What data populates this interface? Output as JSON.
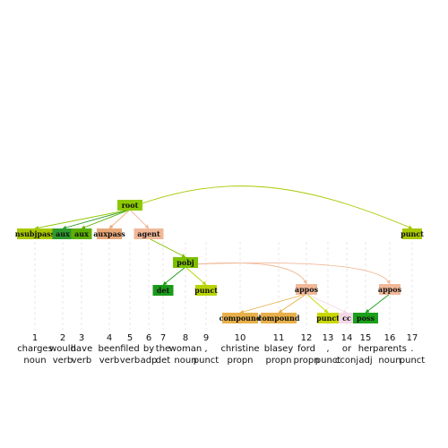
{
  "tokens": [
    {
      "index": "1",
      "word": "charges",
      "pos": "noun"
    },
    {
      "index": "2",
      "word": "would",
      "pos": "verb"
    },
    {
      "index": "3",
      "word": "have",
      "pos": "verb"
    },
    {
      "index": "4",
      "word": "been",
      "pos": "verb"
    },
    {
      "index": "5",
      "word": "filed",
      "pos": "verb"
    },
    {
      "index": "6",
      "word": "by",
      "pos": "adp"
    },
    {
      "index": "7",
      "word": "the",
      "pos": "det"
    },
    {
      "index": "8",
      "word": "woman",
      "pos": "noun"
    },
    {
      "index": "9",
      "word": ",",
      "pos": "punct"
    },
    {
      "index": "10",
      "word": "christine",
      "pos": "propn"
    },
    {
      "index": "11",
      "word": "blasey",
      "pos": "propn"
    },
    {
      "index": "12",
      "word": "ford",
      "pos": "propn"
    },
    {
      "index": "13",
      "word": ",",
      "pos": "punct"
    },
    {
      "index": "14",
      "word": "or",
      "pos": "cconj"
    },
    {
      "index": "15",
      "word": "her",
      "pos": "adj"
    },
    {
      "index": "16",
      "word": "parents",
      "pos": "noun"
    },
    {
      "index": "17",
      "word": ".",
      "pos": "punct"
    }
  ],
  "nodes": [
    {
      "id": "root",
      "label": "root",
      "color": "#8cc800"
    },
    {
      "id": "nsubjpass",
      "label": "nsubjpass",
      "color": "#a8c800"
    },
    {
      "id": "aux1",
      "label": "aux",
      "color": "#2e9a2e"
    },
    {
      "id": "aux2",
      "label": "aux",
      "color": "#5cb000"
    },
    {
      "id": "auxpass",
      "label": "auxpass",
      "color": "#e8a878"
    },
    {
      "id": "agent",
      "label": "agent",
      "color": "#f0b898"
    },
    {
      "id": "punct17",
      "label": "punct",
      "color": "#a8c800"
    },
    {
      "id": "pobj",
      "label": "pobj",
      "color": "#7cc000"
    },
    {
      "id": "det",
      "label": "det",
      "color": "#1a9a1a"
    },
    {
      "id": "punct9",
      "label": "punct",
      "color": "#b8d400"
    },
    {
      "id": "appos12",
      "label": "appos",
      "color": "#f0b898"
    },
    {
      "id": "appos16",
      "label": "appos",
      "color": "#f0b898"
    },
    {
      "id": "compound10",
      "label": "compound",
      "color": "#e8b048"
    },
    {
      "id": "compound11",
      "label": "compound",
      "color": "#e8b048"
    },
    {
      "id": "punct13",
      "label": "punct",
      "color": "#c8d800"
    },
    {
      "id": "cc",
      "label": "cc",
      "color": "#f4d8e8"
    },
    {
      "id": "poss",
      "label": "poss",
      "color": "#1aa01a"
    }
  ],
  "edges": [
    {
      "from": "root",
      "to": "nsubjpass",
      "color": "#8cc800"
    },
    {
      "from": "root",
      "to": "aux1",
      "color": "#2e9a2e"
    },
    {
      "from": "root",
      "to": "aux2",
      "color": "#5cb000"
    },
    {
      "from": "root",
      "to": "auxpass",
      "color": "#e8a878"
    },
    {
      "from": "root",
      "to": "agent",
      "color": "#f0b898"
    },
    {
      "from": "root",
      "to": "punct17",
      "color": "#a8c800"
    },
    {
      "from": "agent",
      "to": "pobj",
      "color": "#7cc000"
    },
    {
      "from": "pobj",
      "to": "det",
      "color": "#1a9a1a"
    },
    {
      "from": "pobj",
      "to": "punct9",
      "color": "#b8d400"
    },
    {
      "from": "pobj",
      "to": "appos12",
      "color": "#f0b898"
    },
    {
      "from": "pobj",
      "to": "appos16",
      "color": "#f0b898"
    },
    {
      "from": "appos12",
      "to": "compound10",
      "color": "#e8b048"
    },
    {
      "from": "appos12",
      "to": "compound11",
      "color": "#e8b048"
    },
    {
      "from": "appos12",
      "to": "punct13",
      "color": "#c8d800"
    },
    {
      "from": "appos12",
      "to": "cc",
      "color": "#f4d8e8"
    },
    {
      "from": "appos16",
      "to": "poss",
      "color": "#1aa01a"
    }
  ]
}
